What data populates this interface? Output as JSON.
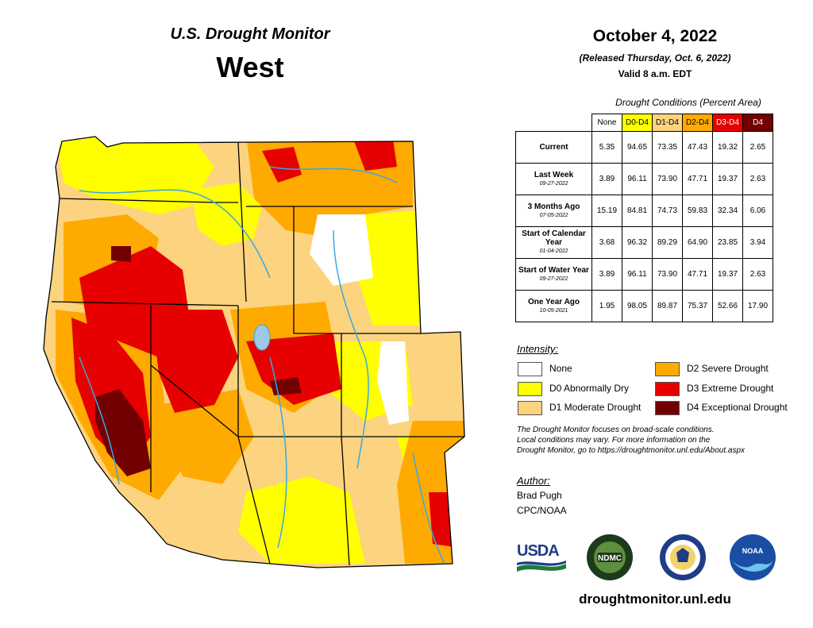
{
  "map": {
    "title_line1": "U.S. Drought Monitor",
    "title_line2": "West"
  },
  "header": {
    "date": "October 4, 2022",
    "released": "(Released Thursday, Oct. 6, 2022)",
    "valid": "Valid 8 a.m. EDT"
  },
  "table": {
    "caption": "Drought Conditions (Percent Area)",
    "columns": [
      "None",
      "D0-D4",
      "D1-D4",
      "D2-D4",
      "D3-D4",
      "D4"
    ],
    "column_colors": [
      "#ffffff",
      "#ffff00",
      "#fcd37f",
      "#ffaa00",
      "#e60000",
      "#730000"
    ],
    "rows": [
      {
        "label": "Current",
        "sub": "",
        "values": [
          "5.35",
          "94.65",
          "73.35",
          "47.43",
          "19.32",
          "2.65"
        ]
      },
      {
        "label": "Last Week",
        "sub": "09-27-2022",
        "values": [
          "3.89",
          "96.11",
          "73.90",
          "47.71",
          "19.37",
          "2.63"
        ]
      },
      {
        "label": "3 Months Ago",
        "sub": "07-05-2022",
        "values": [
          "15.19",
          "84.81",
          "74.73",
          "59.83",
          "32.34",
          "6.06"
        ]
      },
      {
        "label": "Start of Calendar Year",
        "sub": "01-04-2022",
        "values": [
          "3.68",
          "96.32",
          "89.29",
          "64.90",
          "23.85",
          "3.94"
        ]
      },
      {
        "label": "Start of Water Year",
        "sub": "09-27-2022",
        "values": [
          "3.89",
          "96.11",
          "73.90",
          "47.71",
          "19.37",
          "2.63"
        ]
      },
      {
        "label": "One Year Ago",
        "sub": "10-05-2021",
        "values": [
          "1.95",
          "98.05",
          "89.87",
          "75.37",
          "52.66",
          "17.90"
        ]
      }
    ]
  },
  "legend": {
    "heading": "Intensity:",
    "items": [
      {
        "label": "None",
        "color": "#ffffff"
      },
      {
        "label": "D0 Abnormally Dry",
        "color": "#ffff00"
      },
      {
        "label": "D1 Moderate Drought",
        "color": "#fcd37f"
      },
      {
        "label": "D2 Severe Drought",
        "color": "#ffaa00"
      },
      {
        "label": "D3 Extreme Drought",
        "color": "#e60000"
      },
      {
        "label": "D4 Exceptional Drought",
        "color": "#730000"
      }
    ]
  },
  "note": {
    "line1": "The Drought Monitor focuses on broad-scale conditions.",
    "line2": "Local conditions may vary. For more information on the",
    "line3": "Drought Monitor, go to https://droughtmonitor.unl.edu/About.aspx"
  },
  "author": {
    "heading": "Author:",
    "name": "Brad Pugh",
    "org": "CPC/NOAA"
  },
  "logos": {
    "usda": "USDA",
    "ndmc": "NDMC",
    "noaa": "NOAA"
  },
  "footer": {
    "website": "droughtmonitor.unl.edu"
  }
}
